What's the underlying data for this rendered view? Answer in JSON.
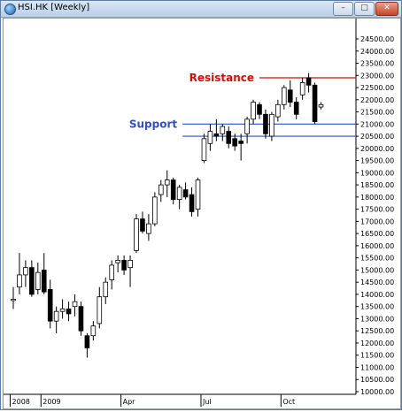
{
  "window": {
    "title": "HSI.HK [Weekly]",
    "minimize_glyph": "–",
    "maximize_glyph": "□",
    "close_glyph": "✕",
    "icon": "globe-icon"
  },
  "chart_data": {
    "type": "candlestick",
    "title": "",
    "xlabel": "",
    "ylabel": "",
    "ylim": [
      10000,
      24600
    ],
    "y_ticks": [
      "24500.00",
      "24000.00",
      "23500.00",
      "23000.00",
      "22500.00",
      "22000.00",
      "21500.00",
      "21000.00",
      "20500.00",
      "20000.00",
      "19500.00",
      "19000.00",
      "18500.00",
      "18000.00",
      "17500.00",
      "17000.00",
      "16500.00",
      "16000.00",
      "15500.00",
      "15000.00",
      "14500.00",
      "14000.00",
      "13500.00",
      "13000.00",
      "12500.00",
      "12000.00",
      "11500.00",
      "11000.00",
      "10500.00",
      "10000.00"
    ],
    "x_labels": [
      {
        "label": "2008",
        "index": -0.5
      },
      {
        "label": "2009",
        "index": 4.5
      },
      {
        "label": "Apr",
        "index": 17.5
      },
      {
        "label": "Jul",
        "index": 30.5
      },
      {
        "label": "Oct",
        "index": 43.5
      }
    ],
    "colors": {
      "up": "#ffffff",
      "down": "#000000",
      "support": "#3050c0",
      "resistance": "#cc1111"
    },
    "grid": false,
    "candles": [
      {
        "o": 13800,
        "h": 14300,
        "l": 13400,
        "c": 13800
      },
      {
        "o": 14300,
        "h": 15700,
        "l": 14000,
        "c": 14800
      },
      {
        "o": 14800,
        "h": 15400,
        "l": 14300,
        "c": 15100
      },
      {
        "o": 15100,
        "h": 15400,
        "l": 13900,
        "c": 14000
      },
      {
        "o": 14200,
        "h": 15300,
        "l": 14000,
        "c": 14900
      },
      {
        "o": 15000,
        "h": 15700,
        "l": 14000,
        "c": 14100
      },
      {
        "o": 14200,
        "h": 14600,
        "l": 12600,
        "c": 12900
      },
      {
        "o": 12900,
        "h": 13500,
        "l": 12400,
        "c": 13300
      },
      {
        "o": 13300,
        "h": 13800,
        "l": 13000,
        "c": 13400
      },
      {
        "o": 13400,
        "h": 13700,
        "l": 12900,
        "c": 13200
      },
      {
        "o": 13500,
        "h": 14000,
        "l": 13100,
        "c": 13700
      },
      {
        "o": 13500,
        "h": 13700,
        "l": 12300,
        "c": 12500
      },
      {
        "o": 12300,
        "h": 12400,
        "l": 11400,
        "c": 11800
      },
      {
        "o": 12300,
        "h": 12900,
        "l": 12100,
        "c": 12700
      },
      {
        "o": 12800,
        "h": 14300,
        "l": 12600,
        "c": 13900
      },
      {
        "o": 13900,
        "h": 14700,
        "l": 13600,
        "c": 14500
      },
      {
        "o": 14600,
        "h": 15400,
        "l": 14200,
        "c": 15200
      },
      {
        "o": 15300,
        "h": 15600,
        "l": 14900,
        "c": 15400
      },
      {
        "o": 15400,
        "h": 15600,
        "l": 14800,
        "c": 15000
      },
      {
        "o": 15100,
        "h": 15600,
        "l": 14300,
        "c": 15400
      },
      {
        "o": 15800,
        "h": 17300,
        "l": 15700,
        "c": 17100
      },
      {
        "o": 17100,
        "h": 17400,
        "l": 16500,
        "c": 16600
      },
      {
        "o": 16500,
        "h": 17300,
        "l": 16200,
        "c": 16900
      },
      {
        "o": 16900,
        "h": 18200,
        "l": 16800,
        "c": 18000
      },
      {
        "o": 18100,
        "h": 18700,
        "l": 17800,
        "c": 18500
      },
      {
        "o": 18500,
        "h": 19100,
        "l": 18000,
        "c": 18700
      },
      {
        "o": 18700,
        "h": 18800,
        "l": 17700,
        "c": 17900
      },
      {
        "o": 17900,
        "h": 18500,
        "l": 17500,
        "c": 18400
      },
      {
        "o": 18300,
        "h": 18600,
        "l": 17900,
        "c": 18000
      },
      {
        "o": 18100,
        "h": 18400,
        "l": 17200,
        "c": 17400
      },
      {
        "o": 17500,
        "h": 18800,
        "l": 17200,
        "c": 18700
      },
      {
        "o": 19500,
        "h": 20600,
        "l": 19400,
        "c": 20400
      },
      {
        "o": 20200,
        "h": 21000,
        "l": 19900,
        "c": 20700
      },
      {
        "o": 20600,
        "h": 21200,
        "l": 20300,
        "c": 20500
      },
      {
        "o": 20600,
        "h": 21000,
        "l": 20300,
        "c": 20900
      },
      {
        "o": 20700,
        "h": 20900,
        "l": 20000,
        "c": 20200
      },
      {
        "o": 20400,
        "h": 20600,
        "l": 19900,
        "c": 20100
      },
      {
        "o": 20300,
        "h": 20600,
        "l": 19500,
        "c": 20200
      },
      {
        "o": 20600,
        "h": 21300,
        "l": 20200,
        "c": 21200
      },
      {
        "o": 21200,
        "h": 22000,
        "l": 21000,
        "c": 21900
      },
      {
        "o": 21800,
        "h": 21900,
        "l": 21200,
        "c": 21400
      },
      {
        "o": 21400,
        "h": 21600,
        "l": 20400,
        "c": 20600
      },
      {
        "o": 20500,
        "h": 21500,
        "l": 20300,
        "c": 21400
      },
      {
        "o": 21300,
        "h": 22000,
        "l": 21100,
        "c": 21800
      },
      {
        "o": 21800,
        "h": 22600,
        "l": 21600,
        "c": 22500
      },
      {
        "o": 22400,
        "h": 22800,
        "l": 21700,
        "c": 21900
      },
      {
        "o": 21900,
        "h": 22100,
        "l": 21200,
        "c": 21400
      },
      {
        "o": 22200,
        "h": 22900,
        "l": 22000,
        "c": 22700
      },
      {
        "o": 22900,
        "h": 23100,
        "l": 22300,
        "c": 22600
      },
      {
        "o": 22600,
        "h": 22700,
        "l": 21000,
        "c": 21100
      },
      {
        "o": 21700,
        "h": 21900,
        "l": 21600,
        "c": 21800
      }
    ],
    "annotations": [
      {
        "text": "Resistance",
        "price": 22900,
        "from_index": 40,
        "color": "#cc1111"
      },
      {
        "text": "Support",
        "price": 21000,
        "from_index": 27.5,
        "color": "#3050c0"
      },
      {
        "text": "",
        "price": 20500,
        "from_index": 27.5,
        "color": "#3050c0"
      }
    ]
  }
}
